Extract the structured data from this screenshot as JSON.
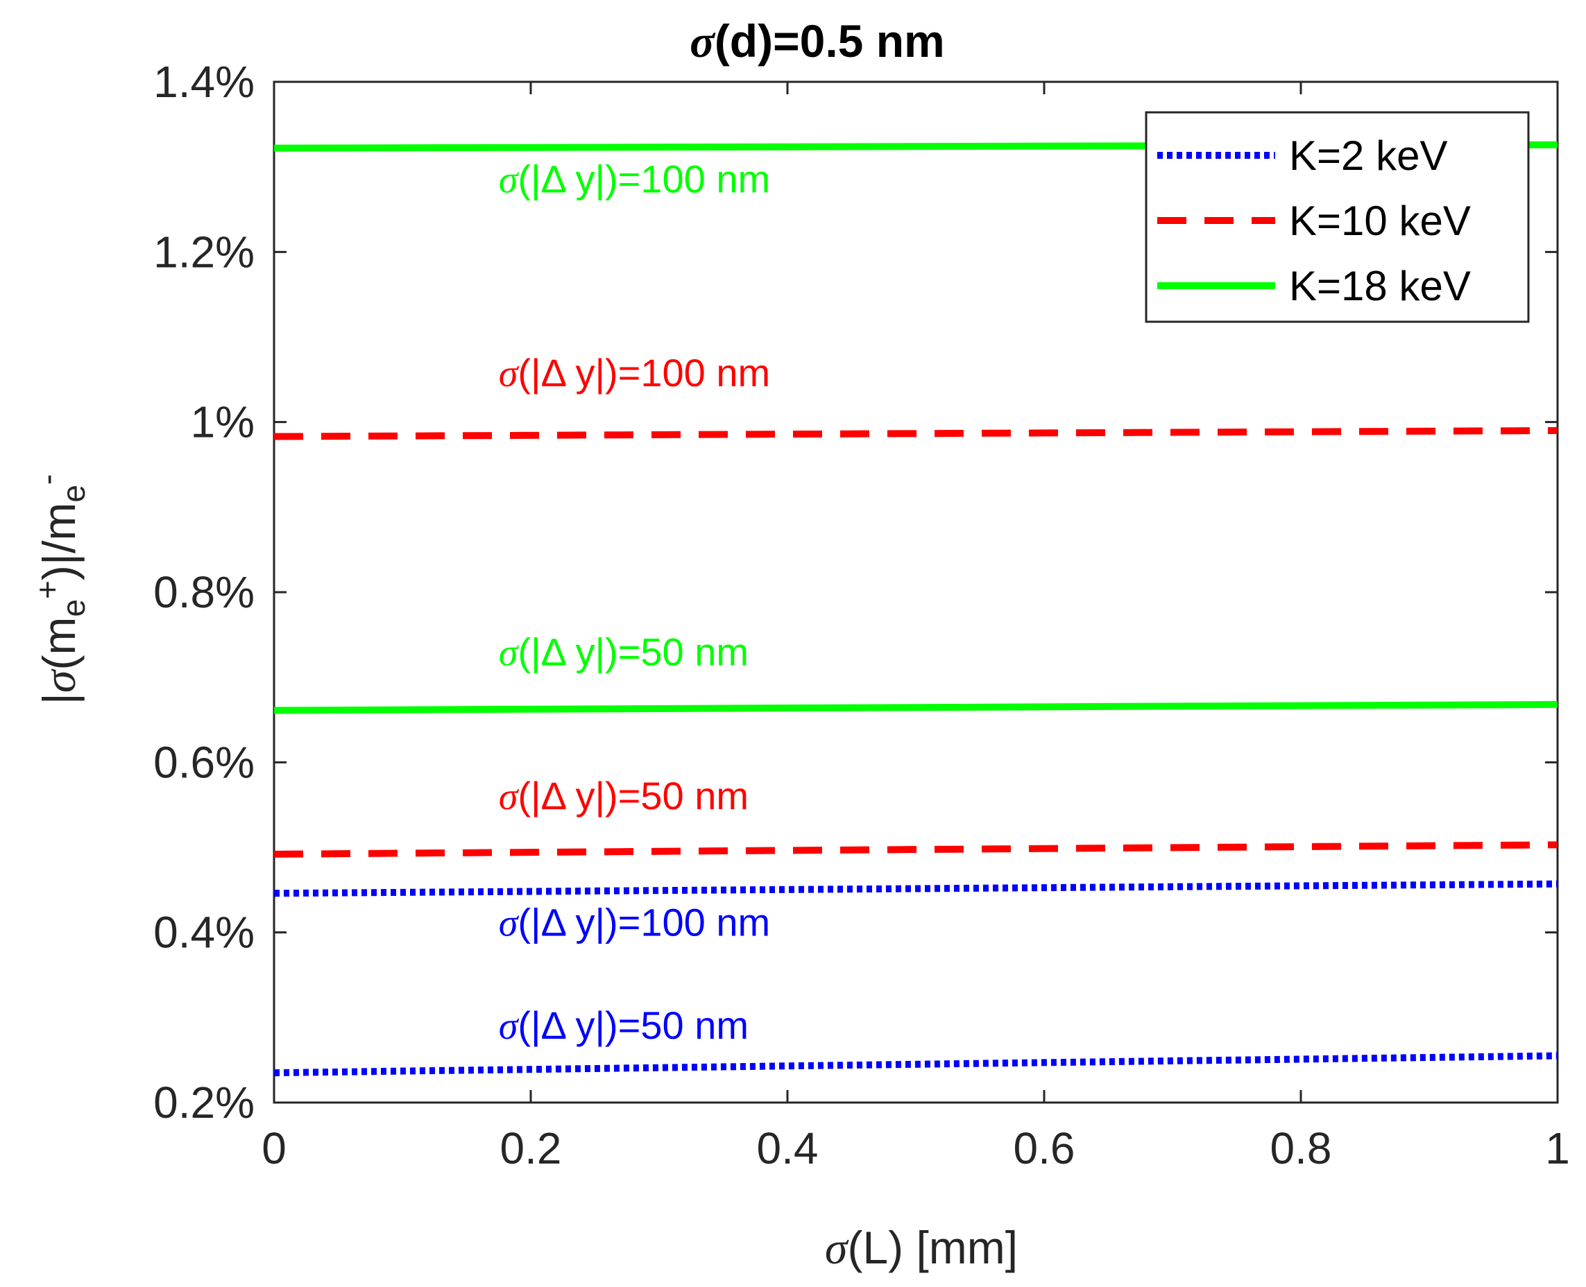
{
  "chart_data": {
    "type": "line",
    "title": {
      "sym": "σ",
      "text": "(d)=0.5 nm"
    },
    "xlabel": {
      "sym": "σ",
      "text": "(L) [mm]"
    },
    "ylabel": {
      "prefix": "|",
      "sym": "σ",
      "text1": "(m",
      "sub1": "e",
      "sup1": "+",
      "text2": ")|/m",
      "sub2": "e",
      "sup2": "-"
    },
    "xlim": [
      0,
      1
    ],
    "ylim": [
      0.2,
      1.4
    ],
    "x_ticks": [
      0,
      0.2,
      0.4,
      0.6,
      0.8,
      1
    ],
    "x_tick_labels": [
      "0",
      "0.2",
      "0.4",
      "0.6",
      "0.8",
      "1"
    ],
    "y_ticks": [
      0.2,
      0.4,
      0.6,
      0.8,
      1.0,
      1.2,
      1.4
    ],
    "y_tick_labels": [
      "0.2%",
      "0.4%",
      "0.6%",
      "0.8%",
      "1%",
      "1.2%",
      "1.4%"
    ],
    "grid": false,
    "legend_location": "top-right",
    "legend": [
      {
        "label": "K=2 keV",
        "color": "#0000ff",
        "style": "dotted"
      },
      {
        "label": "K=10 keV",
        "color": "#ff0000",
        "style": "dashed"
      },
      {
        "label": "K=18 keV",
        "color": "#00ff00",
        "style": "solid"
      }
    ],
    "series": [
      {
        "name": "K=18 keV, σ(|Δ y|)=100 nm",
        "group": "K=18 keV",
        "color": "#00ff00",
        "style": "solid",
        "x": [
          0,
          1
        ],
        "y": [
          1.322,
          1.326
        ]
      },
      {
        "name": "K=10 keV, σ(|Δ y|)=100 nm",
        "group": "K=10 keV",
        "color": "#ff0000",
        "style": "dashed",
        "x": [
          0,
          1
        ],
        "y": [
          0.983,
          0.99
        ]
      },
      {
        "name": "K=18 keV, σ(|Δ y|)=50 nm",
        "group": "K=18 keV",
        "color": "#00ff00",
        "style": "solid",
        "x": [
          0,
          1
        ],
        "y": [
          0.661,
          0.668
        ]
      },
      {
        "name": "K=10 keV, σ(|Δ y|)=50 nm",
        "group": "K=10 keV",
        "color": "#ff0000",
        "style": "dashed",
        "x": [
          0,
          1
        ],
        "y": [
          0.492,
          0.503
        ]
      },
      {
        "name": "K=2 keV, σ(|Δ y|)=100 nm",
        "group": "K=2 keV",
        "color": "#0000ff",
        "style": "dotted",
        "x": [
          0,
          1
        ],
        "y": [
          0.446,
          0.457
        ]
      },
      {
        "name": "K=2 keV, σ(|Δ y|)=50 nm",
        "group": "K=2 keV",
        "color": "#0000ff",
        "style": "dotted",
        "x": [
          0,
          1
        ],
        "y": [
          0.235,
          0.255
        ]
      }
    ],
    "annotations": [
      {
        "sym": "σ",
        "text": "(|Δ y|)=100 nm",
        "color": "#00ff00",
        "x": 0.175,
        "y": 1.27
      },
      {
        "sym": "σ",
        "text": "(|Δ y|)=100 nm",
        "color": "#ff0000",
        "x": 0.175,
        "y": 1.042
      },
      {
        "sym": "σ",
        "text": "(|Δ y|)=50 nm",
        "color": "#00ff00",
        "x": 0.175,
        "y": 0.714
      },
      {
        "sym": "σ",
        "text": "(|Δ y|)=50 nm",
        "color": "#ff0000",
        "x": 0.175,
        "y": 0.545
      },
      {
        "sym": "σ",
        "text": "(|Δ y|)=100 nm",
        "color": "#0000ff",
        "x": 0.175,
        "y": 0.396
      },
      {
        "sym": "σ",
        "text": "(|Δ y|)=50 nm",
        "color": "#0000ff",
        "x": 0.175,
        "y": 0.275
      }
    ]
  }
}
